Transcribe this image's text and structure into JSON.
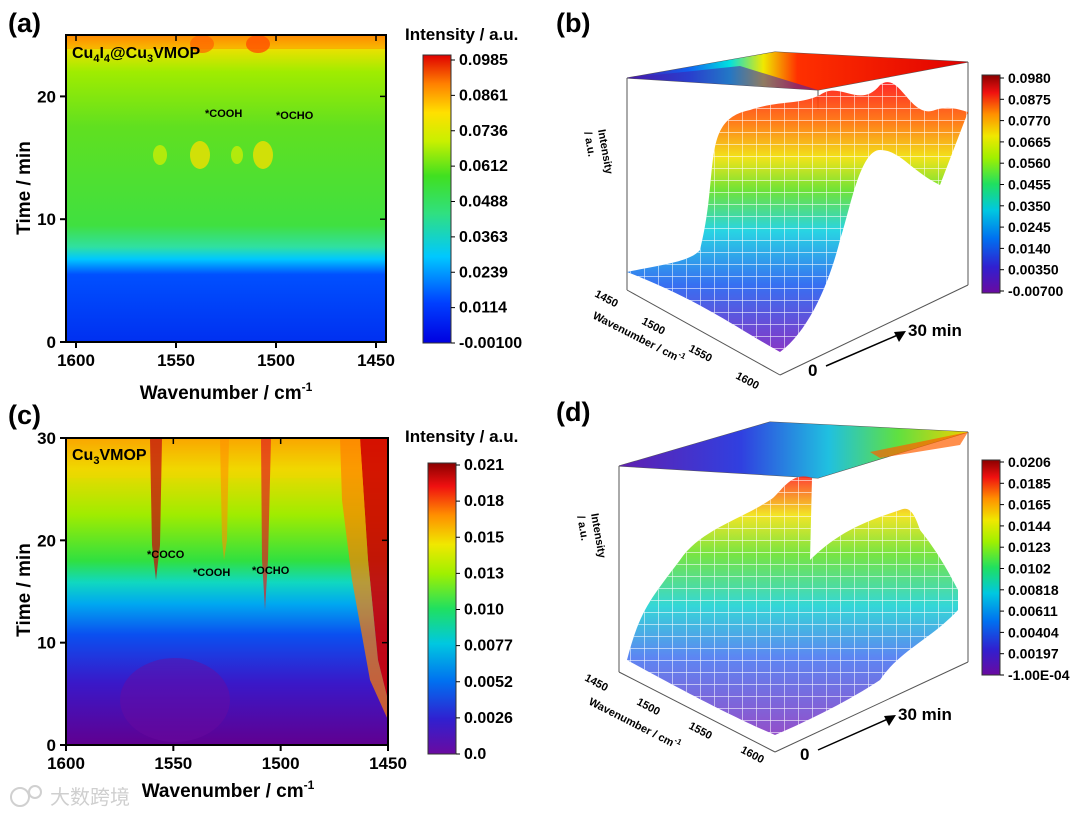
{
  "panels": {
    "a": "(a)",
    "b": "(b)",
    "c": "(c)",
    "d": "(d)"
  },
  "watermark": "大数跨境",
  "chart_data": [
    {
      "id": "a",
      "type": "heatmap",
      "sample_pre": "Cu",
      "sample_s1": "4",
      "sample_mid": "I",
      "sample_s2": "4",
      "sample_post": "@Cu",
      "sample_s3": "3",
      "sample_end": "VMOP",
      "xlabel_main": "Wavenumber / cm",
      "xlabel_sup": "-1",
      "ylabel": "Time / min",
      "xticks": [
        "1600",
        "1550",
        "1500",
        "1450"
      ],
      "xtick_values": [
        1600,
        1550,
        1500,
        1450
      ],
      "yticks": [
        "0",
        "10",
        "20"
      ],
      "ytick_values": [
        0,
        10,
        20
      ],
      "xlim": [
        1605,
        1445
      ],
      "ylim": [
        0,
        25
      ],
      "colorbar_title": "Intensity / a.u.",
      "colorbar_ticks": [
        "0.0985",
        "0.0861",
        "0.0736",
        "0.0612",
        "0.0488",
        "0.0363",
        "0.0239",
        "0.0114",
        "-0.00100"
      ],
      "annotations": [
        "*COOH",
        "*OCHO"
      ]
    },
    {
      "id": "b",
      "type": "surface",
      "zlabel_1": "Intensity",
      "zlabel_2": "/ a.u.",
      "wavenumber_label": "Wavenumber / cm",
      "wavenumber_sup": "-1",
      "wavenumber_ticks": [
        "1450",
        "1500",
        "1550",
        "1600"
      ],
      "time_start": "0",
      "time_end": "30 min",
      "colorbar_ticks": [
        "0.0980",
        "0.0875",
        "0.0770",
        "0.0665",
        "0.0560",
        "0.0455",
        "0.0350",
        "0.0245",
        "0.0140",
        "0.00350",
        "-0.00700"
      ]
    },
    {
      "id": "c",
      "type": "heatmap",
      "sample_pre": "Cu",
      "sample_s1": "3",
      "sample_end": "VMOP",
      "xlabel_main": "Wavenumber / cm",
      "xlabel_sup": "-1",
      "ylabel": "Time / min",
      "xticks": [
        "1600",
        "1550",
        "1500",
        "1450"
      ],
      "xtick_values": [
        1600,
        1550,
        1500,
        1450
      ],
      "yticks": [
        "0",
        "10",
        "20",
        "30"
      ],
      "ytick_values": [
        0,
        10,
        20,
        30
      ],
      "xlim": [
        1600,
        1450
      ],
      "ylim": [
        0,
        30
      ],
      "colorbar_title": "Intensity / a.u.",
      "colorbar_ticks": [
        "0.021",
        "0.018",
        "0.015",
        "0.013",
        "0.010",
        "0.0077",
        "0.0052",
        "0.0026",
        "0.0"
      ],
      "annotations": [
        "*COCO",
        "*COOH",
        "*OCHO"
      ]
    },
    {
      "id": "d",
      "type": "surface",
      "zlabel_1": "Intensity",
      "zlabel_2": "/ a.u.",
      "wavenumber_label": "Wavenumber / cm",
      "wavenumber_sup": "-1",
      "wavenumber_ticks": [
        "1450",
        "1500",
        "1550",
        "1600"
      ],
      "time_start": "0",
      "time_end": "30 min",
      "colorbar_ticks": [
        "0.0206",
        "0.0185",
        "0.0165",
        "0.0144",
        "0.0123",
        "0.0102",
        "0.00818",
        "0.00611",
        "0.00404",
        "0.00197",
        "-1.00E-04"
      ]
    }
  ]
}
